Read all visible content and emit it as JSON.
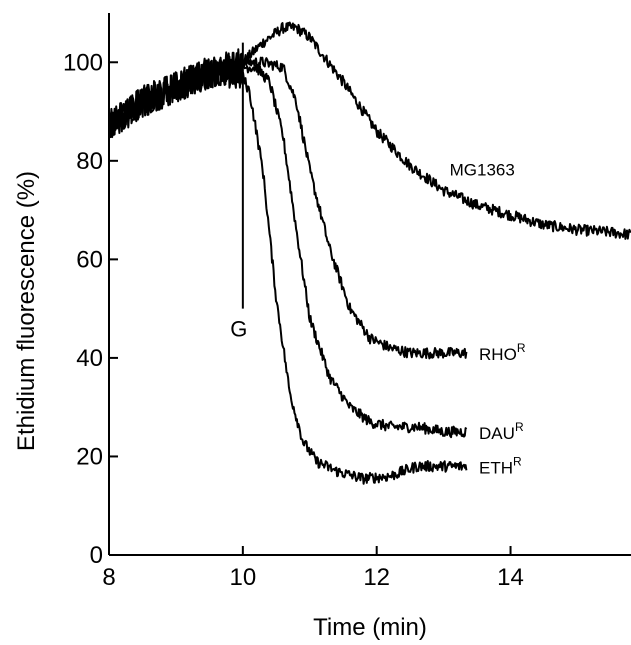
{
  "chart_data": {
    "type": "line",
    "xlabel": "Time (min)",
    "ylabel": "Ethidium fluorescence (%)",
    "xlim": [
      8,
      15.8
    ],
    "ylim": [
      0,
      110
    ],
    "xticks": [
      8,
      10,
      12,
      14
    ],
    "yticks": [
      0,
      20,
      40,
      60,
      80,
      100
    ],
    "grid": false,
    "annotation": {
      "label": "G",
      "x": 10.0,
      "y_top": 104,
      "y_bottom": 50
    },
    "series": [
      {
        "name": "MG1363",
        "label_main": "MG1363",
        "label_sup": "",
        "noise": 2.0,
        "x": [
          8,
          8.5,
          9,
          9.5,
          10,
          10.3,
          10.6,
          10.8,
          11.0,
          11.5,
          12.0,
          12.5,
          13.0,
          13.5,
          14.0,
          14.5,
          15.0,
          15.5,
          15.8
        ],
        "y": [
          87,
          92,
          95,
          98,
          100,
          104,
          107,
          107,
          105,
          96,
          86,
          79,
          74,
          71,
          69,
          67,
          66,
          65.5,
          65
        ]
      },
      {
        "name": "RHOR",
        "label_main": "RHO",
        "label_sup": "R",
        "noise": 2.0,
        "x": [
          8,
          8.5,
          9,
          9.5,
          10,
          10.3,
          10.6,
          10.8,
          11.0,
          11.3,
          11.6,
          11.9,
          12.2,
          12.5,
          13.0,
          13.35
        ],
        "y": [
          87,
          92,
          95,
          98,
          100,
          100,
          99,
          92,
          78,
          62,
          50,
          44,
          42,
          41,
          41,
          41
        ]
      },
      {
        "name": "DAUR",
        "label_main": "DAU",
        "label_sup": "R",
        "noise": 2.0,
        "x": [
          8,
          8.5,
          9,
          9.5,
          10,
          10.2,
          10.4,
          10.6,
          10.8,
          11.0,
          11.3,
          11.6,
          11.9,
          12.2,
          12.6,
          13.0,
          13.35
        ],
        "y": [
          87,
          92,
          95,
          98,
          99,
          99,
          96,
          85,
          66,
          48,
          36,
          30,
          27,
          26,
          26,
          25,
          25
        ]
      },
      {
        "name": "ETHR",
        "label_main": "ETH",
        "label_sup": "R",
        "noise": 2.0,
        "x": [
          8,
          8.5,
          9,
          9.5,
          10,
          10.1,
          10.3,
          10.5,
          10.7,
          10.9,
          11.1,
          11.4,
          11.8,
          12.2,
          12.6,
          13.0,
          13.35
        ],
        "y": [
          87,
          92,
          95,
          98,
          97,
          94,
          78,
          52,
          33,
          23,
          19,
          17,
          15.5,
          16,
          18,
          18,
          18
        ]
      }
    ]
  }
}
